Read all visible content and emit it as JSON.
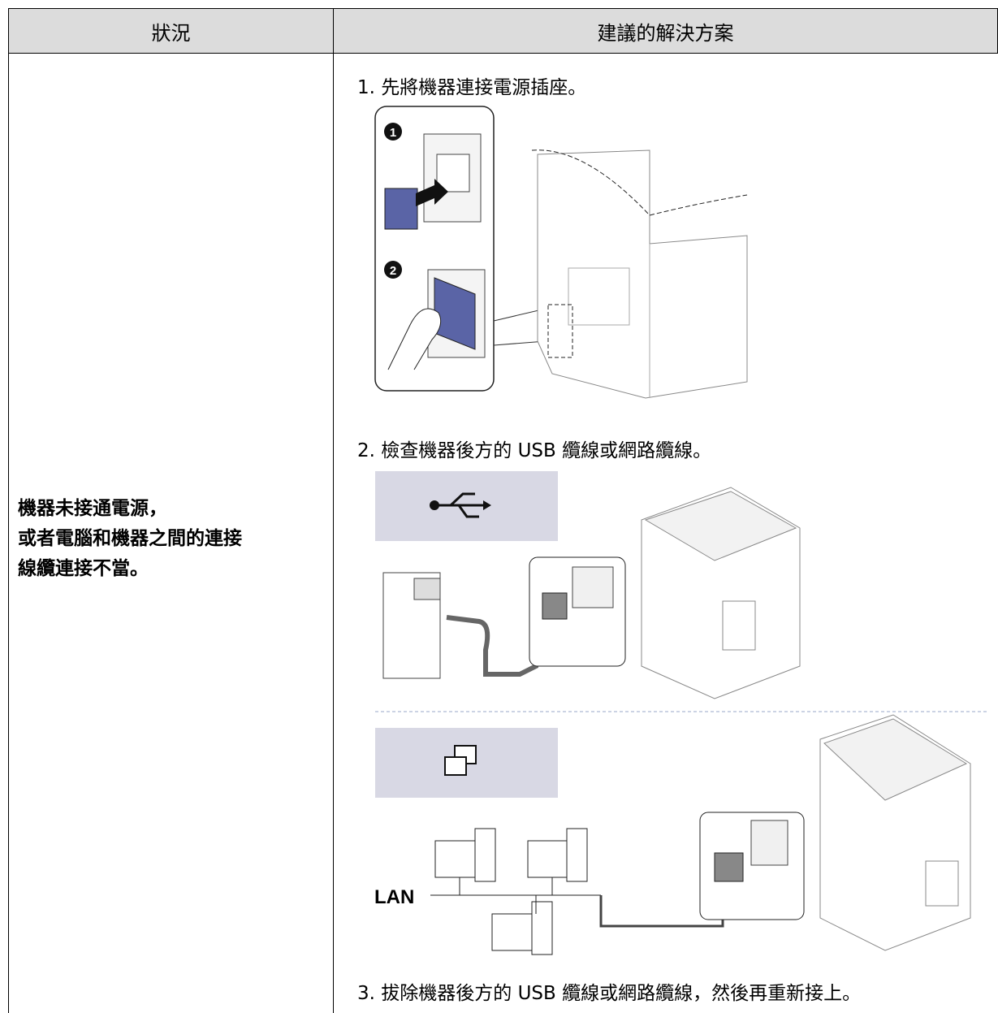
{
  "table": {
    "header": [
      "狀況",
      "建議的解決方案"
    ],
    "rows": [
      {
        "situation": [
          "機器未接通電源，",
          "或者電腦和機器之間的連接",
          "線纜連接不當。"
        ],
        "solution": [
          "1. 先將機器連接電源插座。",
          "2. 檢查機器後方的 USB 纜線或網路纜線。",
          "3. 拔除機器後方的 USB 纜線或網路纜線，然後再重新接上。"
        ]
      }
    ]
  },
  "figures": {
    "callouts": [
      "1",
      "2"
    ],
    "network_label": "LAN"
  }
}
